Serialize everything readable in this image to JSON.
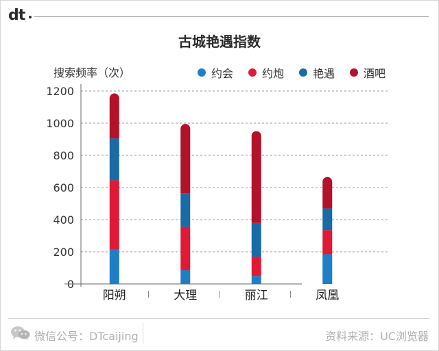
{
  "header": {
    "logo_text": "dt"
  },
  "chart_data": {
    "type": "bar",
    "stacked": true,
    "title": "古城艳遇指数",
    "ylabel": "搜索频率（次）",
    "xlabel": "",
    "categories": [
      "阳朔",
      "大理",
      "丽江",
      "凤凰"
    ],
    "ylim": [
      0,
      1200
    ],
    "yticks": [
      0,
      200,
      400,
      600,
      800,
      1000,
      1200
    ],
    "grid": true,
    "legend_position": "top-right",
    "series": [
      {
        "name": "约会",
        "color": "#1f7fc6",
        "values": [
          215,
          85,
          50,
          185
        ]
      },
      {
        "name": "约炮",
        "color": "#e01a36",
        "values": [
          430,
          270,
          120,
          150
        ]
      },
      {
        "name": "艳遇",
        "color": "#1a6aa6",
        "values": [
          260,
          210,
          210,
          135
        ]
      },
      {
        "name": "酒吧",
        "color": "#b3122a",
        "values": [
          280,
          430,
          570,
          195
        ]
      }
    ]
  },
  "footer": {
    "left": "微信公号：DTcaijing",
    "right": "资料来源：UC浏览器"
  },
  "icons": {
    "wechat": "wechat-icon"
  }
}
